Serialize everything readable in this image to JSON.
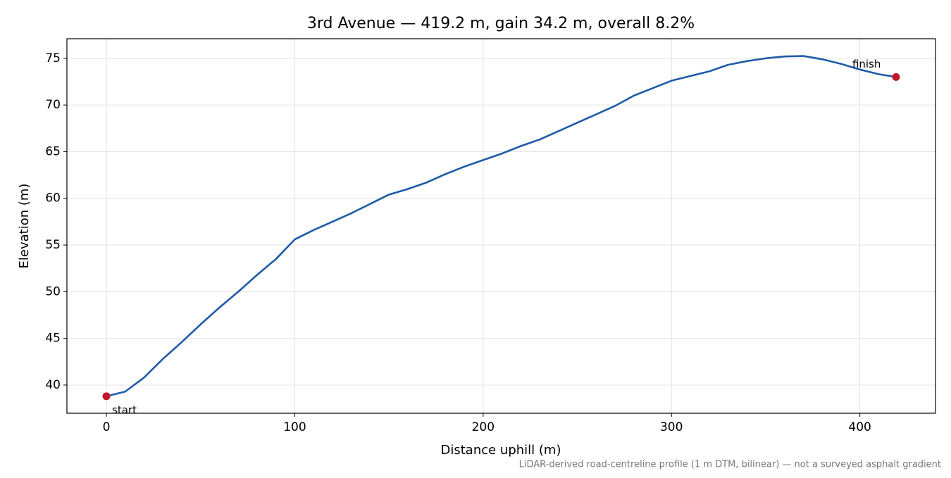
{
  "chart_data": {
    "type": "line",
    "title": "3rd Avenue — 419.2 m, gain 34.2 m, overall 8.2%",
    "x_label": "Distance uphill (m)",
    "y_label": "Elevation (m)",
    "note": "LiDAR-derived road-centreline profile (1 m DTM, bilinear) — not a surveyed asphalt gradient",
    "x": [
      0,
      10,
      20,
      30,
      40,
      50,
      60,
      70,
      80,
      90,
      100,
      110,
      120,
      130,
      140,
      150,
      160,
      170,
      180,
      190,
      200,
      210,
      220,
      230,
      240,
      250,
      260,
      270,
      280,
      290,
      300,
      310,
      320,
      330,
      340,
      350,
      360,
      370,
      380,
      390,
      400,
      410,
      419.2
    ],
    "values": [
      38.8,
      39.3,
      40.8,
      42.8,
      44.6,
      46.5,
      48.3,
      50.0,
      51.8,
      53.5,
      55.6,
      56.6,
      57.5,
      58.4,
      59.4,
      60.4,
      61.0,
      61.7,
      62.6,
      63.4,
      64.1,
      64.8,
      65.6,
      66.3,
      67.2,
      68.1,
      69.0,
      69.9,
      71.0,
      71.8,
      72.6,
      73.1,
      73.6,
      74.3,
      74.7,
      75.0,
      75.2,
      75.25,
      74.9,
      74.4,
      73.8,
      73.3,
      73.0
    ],
    "color": "#1f5aa8",
    "marker_color": "#c0182a",
    "annotations": [
      {
        "text": "start",
        "x": 0,
        "y": 38.8
      },
      {
        "text": "finish",
        "x": 419.2,
        "y": 73.0
      }
    ],
    "xlim": [
      -20.96,
      440.16
    ],
    "ylim": [
      36.98,
      77.1
    ],
    "xticks": [
      0,
      100,
      200,
      300,
      400
    ],
    "yticks": [
      40,
      45,
      50,
      55,
      60,
      65,
      70,
      75
    ],
    "grid": true
  }
}
